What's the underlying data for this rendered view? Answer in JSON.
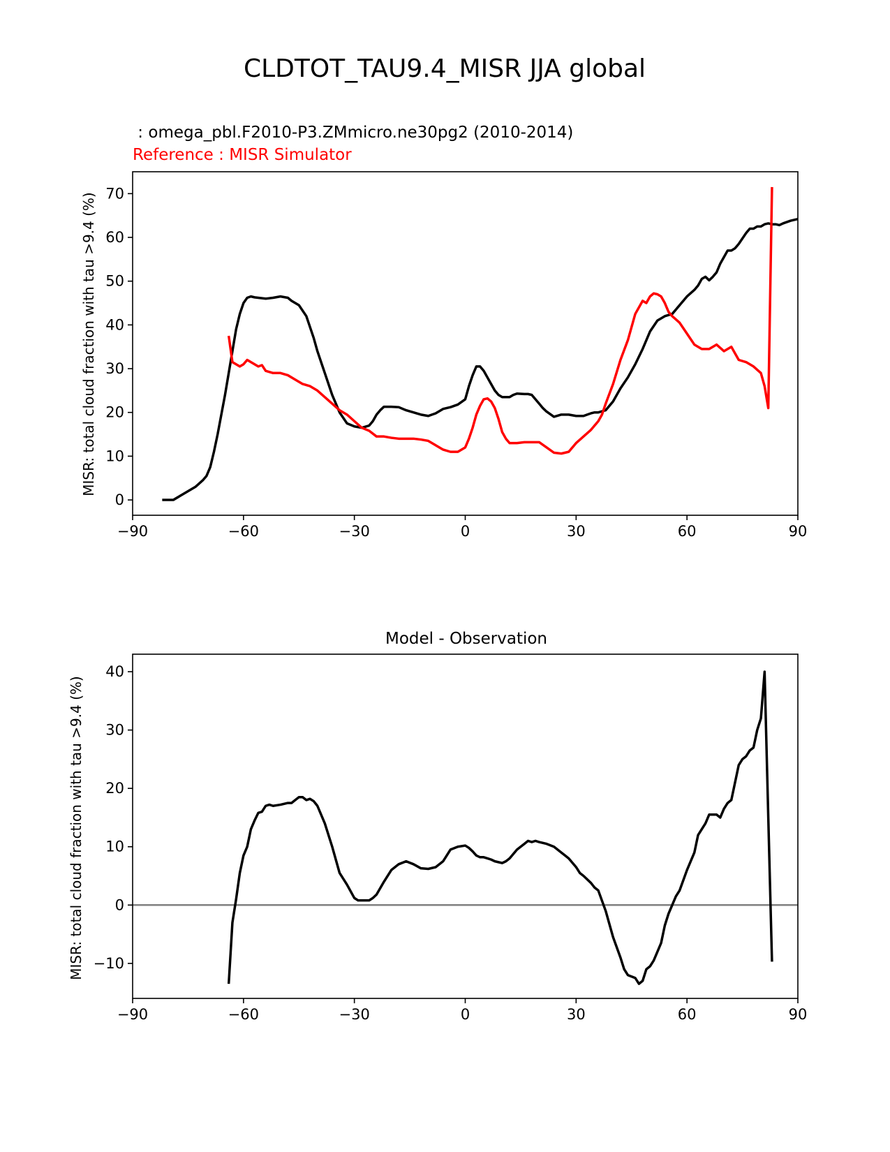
{
  "figure_title": "CLDTOT_TAU9.4_MISR JJA global",
  "chart_data": [
    {
      "type": "line",
      "test_label": " : omega_pbl.F2010-P3.ZMmicro.ne30pg2 (2010-2014)",
      "ref_label": "Reference : MISR Simulator",
      "title": "",
      "xlabel": "",
      "ylabel": "MISR: total cloud fraction with tau >9.4 (%)",
      "xlim": [
        -90,
        90
      ],
      "ylim": [
        -3.5,
        75
      ],
      "xticks": [
        -90,
        -60,
        -30,
        0,
        30,
        60,
        90
      ],
      "xtick_labels": [
        "−90",
        "−60",
        "−30",
        "0",
        "30",
        "60",
        "90"
      ],
      "yticks": [
        0,
        10,
        20,
        30,
        40,
        50,
        60,
        70
      ],
      "ytick_labels": [
        "0",
        "10",
        "20",
        "30",
        "40",
        "50",
        "60",
        "70"
      ],
      "series": [
        {
          "name": "test",
          "color": "#000000",
          "x": [
            -82,
            -79,
            -77,
            -75,
            -73,
            -71,
            -70,
            -69,
            -68,
            -67,
            -66,
            -65,
            -64,
            -63,
            -62,
            -61,
            -60,
            -59,
            -58,
            -57,
            -56,
            -55,
            -54,
            -52,
            -50,
            -48,
            -47,
            -45,
            -43,
            -42,
            -41,
            -40,
            -38,
            -36,
            -34,
            -32,
            -30,
            -28,
            -26,
            -25,
            -24,
            -23,
            -22,
            -21,
            -20,
            -18,
            -16,
            -14,
            -12,
            -10,
            -8,
            -6,
            -4,
            -2,
            0,
            1,
            2,
            3,
            4,
            5,
            6,
            7,
            8,
            9,
            10,
            12,
            13,
            14,
            16,
            17,
            18,
            19,
            20,
            21,
            22,
            24,
            26,
            27,
            28,
            30,
            31,
            32,
            34,
            35,
            36,
            38,
            39,
            40,
            42,
            44,
            46,
            48,
            50,
            52,
            54,
            56,
            58,
            60,
            62,
            63,
            64,
            65,
            66,
            67,
            68,
            69,
            70,
            71,
            72,
            73,
            74,
            76,
            77,
            78,
            79,
            80,
            81,
            82,
            83,
            84,
            85,
            86,
            87,
            88,
            89,
            90
          ],
          "y": [
            0,
            0,
            1,
            2,
            3,
            4.5,
            5.5,
            7.5,
            11,
            15,
            19.5,
            24,
            29,
            34,
            39,
            42.5,
            45,
            46.2,
            46.5,
            46.3,
            46.2,
            46.1,
            46,
            46.2,
            46.5,
            46.2,
            45.5,
            44.5,
            42,
            39.5,
            37,
            34,
            29,
            24,
            20,
            17.5,
            16.8,
            16.5,
            17,
            18,
            19.5,
            20.5,
            21.3,
            21.3,
            21.3,
            21.2,
            20.5,
            20,
            19.5,
            19.2,
            19.8,
            20.8,
            21.2,
            21.8,
            23,
            26,
            28.5,
            30.5,
            30.5,
            29.5,
            28,
            26.5,
            25,
            24,
            23.5,
            23.5,
            24,
            24.3,
            24.2,
            24.2,
            24,
            23,
            22,
            21,
            20.2,
            19,
            19.5,
            19.5,
            19.5,
            19.2,
            19.2,
            19.2,
            19.8,
            20,
            20,
            20.5,
            21.5,
            22.5,
            25.5,
            28,
            31,
            34.5,
            38.5,
            41,
            42,
            42.5,
            44.5,
            46.5,
            48,
            49,
            50.5,
            51,
            50.2,
            51,
            52,
            54,
            55.5,
            57,
            57,
            57.5,
            58.5,
            61,
            62,
            62,
            62.5,
            62.5,
            63,
            63.2,
            63,
            63,
            62.8,
            63.2,
            63.5,
            63.8,
            64,
            64.2
          ]
        },
        {
          "name": "reference",
          "color": "#ff0000",
          "x": [
            -64,
            -63,
            -62,
            -61,
            -60,
            -59,
            -58,
            -57,
            -56,
            -55,
            -54,
            -52,
            -50,
            -48,
            -46,
            -44,
            -42,
            -40,
            -38,
            -36,
            -34,
            -32,
            -30,
            -28,
            -26,
            -24,
            -22,
            -20,
            -18,
            -16,
            -14,
            -12,
            -10,
            -8,
            -6,
            -4,
            -2,
            0,
            1,
            2,
            3,
            4,
            5,
            6,
            7,
            8,
            9,
            10,
            11,
            12,
            14,
            16,
            18,
            20,
            22,
            24,
            26,
            28,
            30,
            32,
            34,
            36,
            37,
            38,
            40,
            42,
            44,
            46,
            48,
            49,
            50,
            51,
            52,
            53,
            54,
            55,
            56,
            58,
            60,
            62,
            64,
            66,
            68,
            70,
            72,
            73,
            74,
            76,
            78,
            80,
            81,
            82,
            83
          ],
          "y": [
            37.5,
            31.5,
            31,
            30.5,
            31,
            32,
            31.5,
            31,
            30.5,
            30.8,
            29.5,
            29,
            29,
            28.5,
            27.5,
            26.5,
            26,
            25,
            23.5,
            22,
            20.5,
            19.5,
            18,
            16.5,
            15.8,
            14.5,
            14.5,
            14.2,
            14,
            14,
            14,
            13.8,
            13.5,
            12.5,
            11.5,
            11,
            11,
            12,
            14,
            16.5,
            19.5,
            21.5,
            23,
            23.2,
            22.5,
            21,
            18.5,
            15.5,
            14,
            13,
            13,
            13.2,
            13.2,
            13.2,
            12,
            10.8,
            10.6,
            11,
            13,
            14.5,
            16,
            18,
            19.5,
            22,
            26.5,
            32,
            36.5,
            42.5,
            45.5,
            45,
            46.5,
            47.2,
            47,
            46.5,
            45,
            43,
            42,
            40.5,
            38,
            35.5,
            34.5,
            34.5,
            35.5,
            34,
            35,
            33.5,
            32,
            31.5,
            30.5,
            29,
            26,
            21,
            71.5
          ]
        }
      ]
    },
    {
      "type": "line",
      "title": "Model - Observation",
      "xlabel": "",
      "ylabel": "MISR: total cloud fraction with tau >9.4 (%)",
      "xlim": [
        -90,
        90
      ],
      "ylim": [
        -16,
        43
      ],
      "xticks": [
        -90,
        -60,
        -30,
        0,
        30,
        60,
        90
      ],
      "xtick_labels": [
        "−90",
        "−60",
        "−30",
        "0",
        "30",
        "60",
        "90"
      ],
      "yticks": [
        -10,
        0,
        10,
        20,
        30,
        40
      ],
      "ytick_labels": [
        "−10",
        "0",
        "10",
        "20",
        "30",
        "40"
      ],
      "zero_line": {
        "y": 0,
        "color": "#808080"
      },
      "series": [
        {
          "name": "difference",
          "color": "#000000",
          "x": [
            -64,
            -63,
            -62,
            -61,
            -60,
            -59,
            -58,
            -57,
            -56,
            -55,
            -54,
            -53,
            -52,
            -50,
            -48,
            -47,
            -46,
            -45,
            -44,
            -43,
            -42,
            -41,
            -40,
            -38,
            -36,
            -34,
            -32,
            -30,
            -29,
            -28,
            -27,
            -26,
            -25,
            -24,
            -22,
            -20,
            -18,
            -16,
            -14,
            -12,
            -10,
            -8,
            -6,
            -4,
            -2,
            0,
            1,
            2,
            3,
            4,
            5,
            6,
            7,
            8,
            10,
            11,
            12,
            14,
            16,
            17,
            18,
            19,
            20,
            22,
            24,
            26,
            27,
            28,
            30,
            31,
            32,
            34,
            35,
            36,
            38,
            40,
            42,
            43,
            44,
            46,
            47,
            48,
            49,
            50,
            51,
            52,
            53,
            54,
            55,
            56,
            57,
            58,
            60,
            62,
            63,
            64,
            65,
            66,
            67,
            68,
            69,
            70,
            71,
            72,
            73,
            74,
            75,
            76,
            77,
            78,
            79,
            80,
            81,
            82,
            83
          ],
          "y": [
            -13.5,
            -3,
            1,
            5.5,
            8.5,
            10,
            13,
            14.5,
            15.8,
            16,
            17,
            17.2,
            17,
            17.2,
            17.5,
            17.5,
            18,
            18.5,
            18.5,
            18,
            18.2,
            17.8,
            17,
            14,
            10,
            5.5,
            3.5,
            1.2,
            0.8,
            0.8,
            0.8,
            0.8,
            1.2,
            1.8,
            4,
            6,
            7,
            7.5,
            7,
            6.3,
            6.2,
            6.5,
            7.5,
            9.5,
            10,
            10.2,
            9.8,
            9.2,
            8.5,
            8.2,
            8.2,
            8,
            7.8,
            7.5,
            7.2,
            7.5,
            8,
            9.5,
            10.5,
            11,
            10.8,
            11,
            10.8,
            10.5,
            10,
            9,
            8.5,
            8,
            6.5,
            5.5,
            5,
            3.8,
            3,
            2.5,
            -1,
            -5.5,
            -9,
            -11,
            -12,
            -12.5,
            -13.5,
            -13,
            -11,
            -10.5,
            -9.5,
            -8,
            -6.5,
            -3.5,
            -1.5,
            0,
            1.5,
            2.5,
            6,
            9,
            12,
            13,
            14,
            15.5,
            15.5,
            15.5,
            15,
            16.5,
            17.5,
            18,
            21,
            24,
            25,
            25.5,
            26.5,
            27,
            30,
            32,
            40,
            15,
            -9.7
          ]
        }
      ]
    }
  ]
}
